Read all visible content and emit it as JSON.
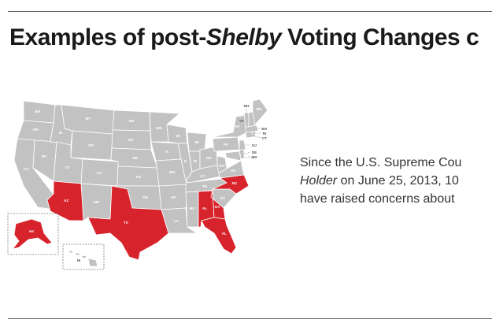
{
  "header": {
    "title_part1": "Examples of post-",
    "title_emph": "Shelby",
    "title_part2": " Voting Changes c"
  },
  "colors": {
    "affected_state": "#d7242c",
    "other_state": "#c2c2c3",
    "text": "#1a1a1a"
  },
  "map": {
    "highlighted_states": [
      "AZ",
      "TX",
      "AL",
      "GA",
      "FL",
      "NC",
      "AK"
    ],
    "labels": {
      "WA": "WA",
      "OR": "OR",
      "CA": "CA",
      "NV": "NV",
      "ID": "ID",
      "MT": "MT",
      "WY": "WY",
      "UT": "UT",
      "AZ": "AZ",
      "CO": "CO",
      "NM": "NM",
      "ND": "ND",
      "SD": "SD",
      "NE": "NE",
      "KS": "KS",
      "OK": "OK",
      "TX": "TX",
      "MN": "MN",
      "IA": "IA",
      "MO": "MO",
      "AR": "AR",
      "LA": "LA",
      "WI": "WI",
      "IL": "IL",
      "MI": "MI",
      "IN": "IN",
      "OH": "OH",
      "KY": "KY",
      "TN": "TN",
      "MS": "MS",
      "AL": "AL",
      "GA": "GA",
      "FL": "FL",
      "SC": "SC",
      "NC": "NC",
      "VA": "VA",
      "WV": "WV",
      "PA": "PA",
      "NY": "NY",
      "VT": "VT",
      "NH": "NH",
      "ME": "ME",
      "MA": "MA",
      "RI": "RI",
      "CT": "CT",
      "NJ": "NJ",
      "DE": "DE",
      "MD": "MD",
      "AK": "AK",
      "HI": "HI"
    }
  },
  "body": {
    "line1": "Since the U.S. Supreme Cou",
    "line2_emph": "Holder",
    "line2_rest": " on June 25, 2013, 10",
    "line3": "have raised concerns about"
  }
}
